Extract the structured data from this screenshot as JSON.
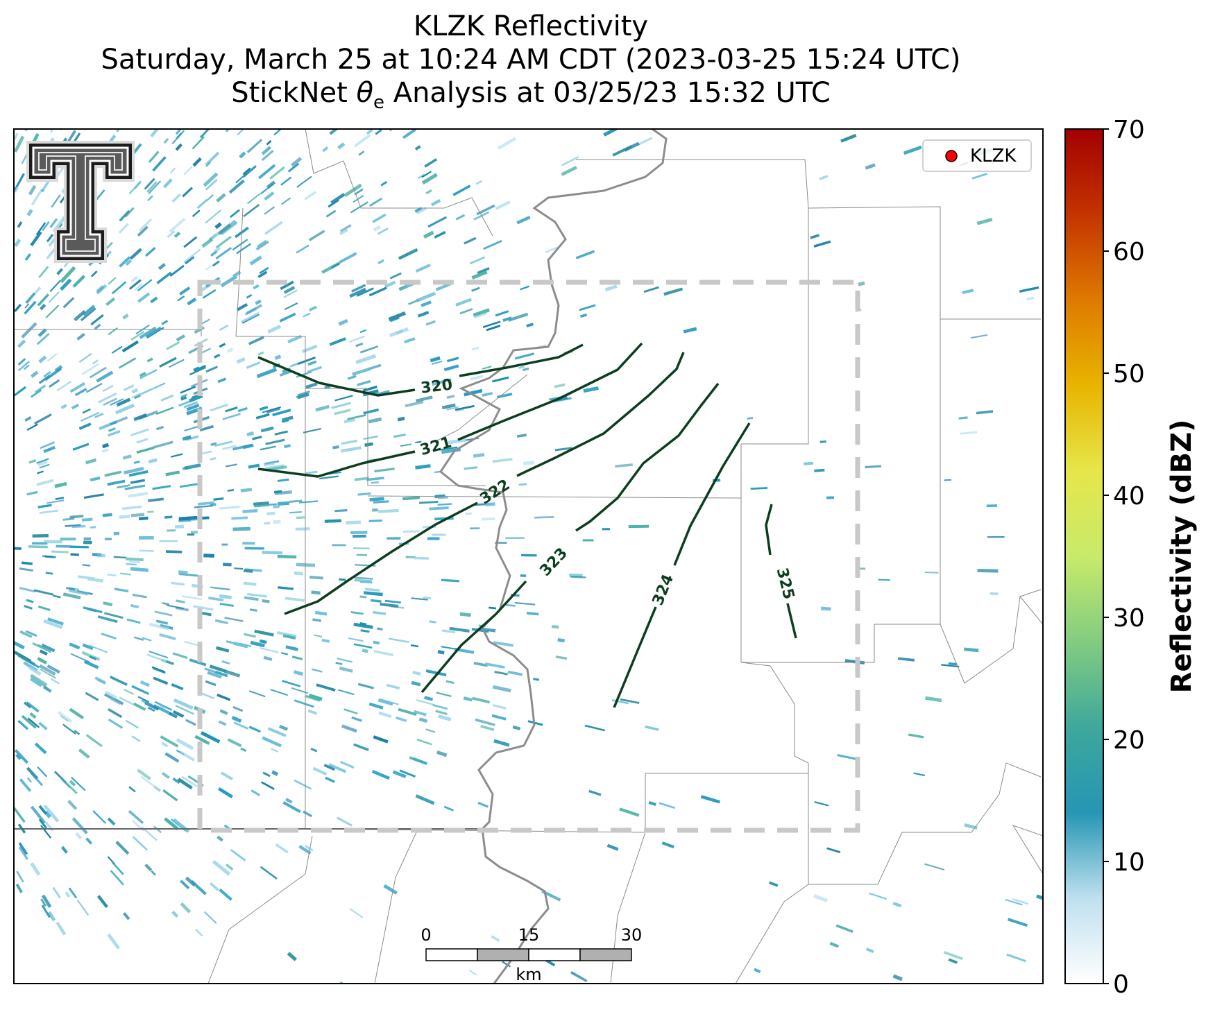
{
  "title": {
    "line1": "KLZK Reflectivity",
    "line2": "Saturday, March 25 at 10:24 AM CDT (2023-03-25 15:24 UTC)",
    "line3_prefix": "StickNet ",
    "line3_symbol": "θ",
    "line3_subscript": "e",
    "line3_suffix": " Analysis at 03/25/23 15:32 UTC"
  },
  "legend": {
    "label": "KLZK",
    "marker_color": "#ff0000"
  },
  "logo": {
    "letter": "T"
  },
  "scalebar": {
    "ticks": [
      "0",
      "15",
      "30"
    ],
    "unit": "km"
  },
  "colorbar": {
    "label": "Reflectivity (dBZ)",
    "ticks": [
      "0",
      "10",
      "20",
      "30",
      "40",
      "50",
      "60",
      "70"
    ],
    "min": 0,
    "max": 70,
    "colors": [
      "#ffffff",
      "#bfe0ef",
      "#2596b4",
      "#3ea89c",
      "#82cc80",
      "#c8ea6a",
      "#e6e64a",
      "#e8b400",
      "#de7a00",
      "#c43400",
      "#a30000"
    ]
  },
  "contours": {
    "color": "#0b3d1e",
    "labels": [
      "320",
      "321",
      "322",
      "323",
      "324",
      "325"
    ]
  },
  "reflectivity_colors": [
    "#2a9bc0",
    "#1f8fb0",
    "#3aa6c8",
    "#6ebfdc",
    "#a8d8ec",
    "#2e8fa3",
    "#4fb3a8",
    "#1b7fa8"
  ]
}
